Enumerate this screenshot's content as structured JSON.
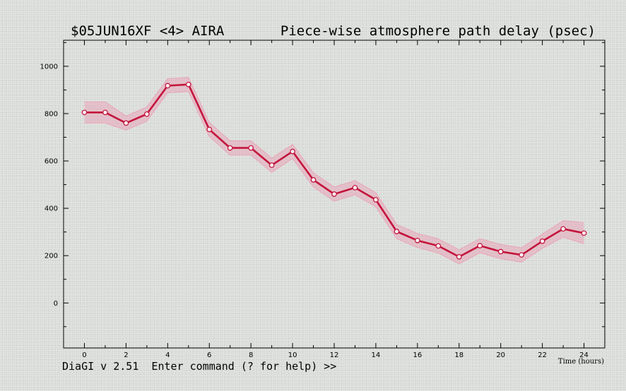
{
  "window": {
    "experiment": "$05JUN16XF <4>  AIRA",
    "plot_title": "Piece-wise atmosphere path delay (psec)"
  },
  "status": {
    "prompt": "DiaGI v 2.51  Enter command (? for help) >>"
  },
  "chart_data": {
    "type": "line",
    "title": "Piece-wise atmosphere path delay (psec)",
    "xlabel": "Time (hours)",
    "ylabel": "",
    "xlim": [
      -1,
      25
    ],
    "ylim": [
      -190,
      1110
    ],
    "xticks": [
      0,
      2,
      4,
      6,
      8,
      10,
      12,
      14,
      16,
      18,
      20,
      22,
      24
    ],
    "yticks": [
      0,
      200,
      400,
      600,
      800,
      1000
    ],
    "grid": false,
    "legend": "none",
    "line_color": "#c4143c",
    "band_color": "#e8a6b8",
    "series": [
      {
        "x": [
          0,
          1,
          2,
          3,
          4,
          5,
          6,
          7,
          8,
          9,
          10,
          11,
          12,
          13,
          14,
          15,
          16,
          17,
          18,
          19,
          20,
          21,
          22,
          23,
          24
        ],
        "values": [
          805,
          805,
          760,
          798,
          918,
          923,
          733,
          655,
          655,
          582,
          640,
          520,
          460,
          487,
          436,
          302,
          264,
          241,
          195,
          242,
          217,
          203,
          261,
          313,
          295
        ],
        "error": [
          45,
          45,
          30,
          30,
          30,
          30,
          30,
          30,
          30,
          30,
          30,
          30,
          30,
          30,
          30,
          30,
          30,
          30,
          30,
          30,
          30,
          30,
          30,
          35,
          45
        ]
      }
    ]
  }
}
